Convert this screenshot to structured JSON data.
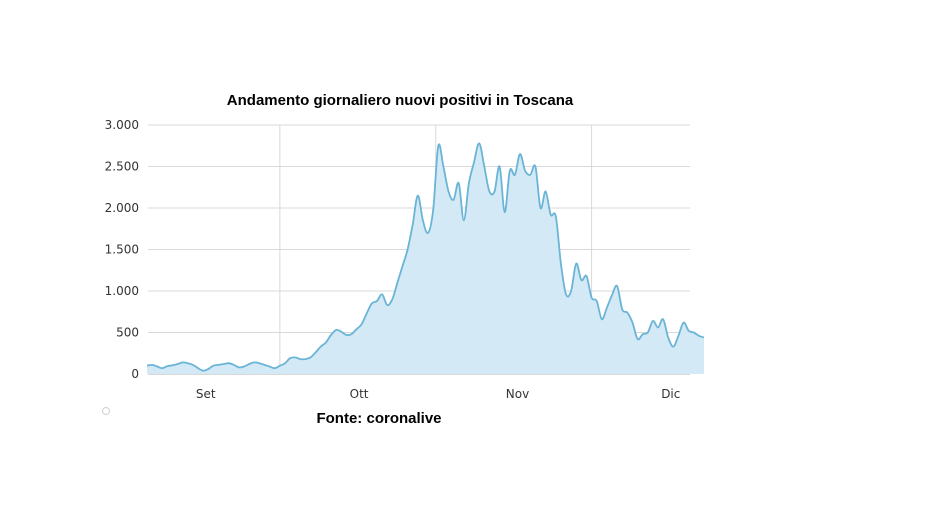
{
  "chart_data": {
    "type": "area",
    "title": "Andamento giornaliero nuovi positivi in Toscana",
    "source": "Fonte: coronalive",
    "xlabel": "",
    "ylabel": "",
    "ylim": [
      0,
      3000
    ],
    "yticks": [
      0,
      500,
      1000,
      1500,
      2000,
      2500,
      3000
    ],
    "ytick_labels": [
      "0",
      "500",
      "1.000",
      "1.500",
      "2.000",
      "2.500",
      "3.000"
    ],
    "xticks": [
      {
        "label": "Set",
        "day": 0
      },
      {
        "label": "Ott",
        "day": 30
      },
      {
        "label": "Nov",
        "day": 61
      },
      {
        "label": "Dic",
        "day": 91
      }
    ],
    "grid": true,
    "colors": {
      "line": "#6ab4d6",
      "fill": "#d3e9f5",
      "grid": "#d9d9d9"
    },
    "series": [
      {
        "values": [
          [
            -11,
            100
          ],
          [
            -10,
            110
          ],
          [
            -9,
            90
          ],
          [
            -8,
            70
          ],
          [
            -7,
            95
          ],
          [
            -6,
            105
          ],
          [
            -5,
            120
          ],
          [
            -4,
            140
          ],
          [
            -3,
            130
          ],
          [
            -2,
            110
          ],
          [
            -1,
            70
          ],
          [
            0,
            40
          ],
          [
            1,
            60
          ],
          [
            2,
            100
          ],
          [
            3,
            110
          ],
          [
            4,
            120
          ],
          [
            5,
            130
          ],
          [
            6,
            110
          ],
          [
            7,
            80
          ],
          [
            8,
            90
          ],
          [
            9,
            120
          ],
          [
            10,
            140
          ],
          [
            11,
            130
          ],
          [
            12,
            110
          ],
          [
            13,
            90
          ],
          [
            14,
            70
          ],
          [
            15,
            100
          ],
          [
            16,
            130
          ],
          [
            17,
            190
          ],
          [
            18,
            200
          ],
          [
            19,
            180
          ],
          [
            20,
            180
          ],
          [
            21,
            200
          ],
          [
            22,
            260
          ],
          [
            23,
            330
          ],
          [
            24,
            380
          ],
          [
            25,
            470
          ],
          [
            26,
            530
          ],
          [
            27,
            510
          ],
          [
            28,
            470
          ],
          [
            29,
            480
          ],
          [
            30,
            540
          ],
          [
            31,
            600
          ],
          [
            32,
            730
          ],
          [
            33,
            850
          ],
          [
            34,
            880
          ],
          [
            35,
            960
          ],
          [
            36,
            830
          ],
          [
            37,
            900
          ],
          [
            38,
            1100
          ],
          [
            39,
            1300
          ],
          [
            40,
            1500
          ],
          [
            41,
            1800
          ],
          [
            42,
            2150
          ],
          [
            43,
            1850
          ],
          [
            44,
            1700
          ],
          [
            45,
            1980
          ],
          [
            46,
            2750
          ],
          [
            47,
            2500
          ],
          [
            48,
            2200
          ],
          [
            49,
            2100
          ],
          [
            50,
            2300
          ],
          [
            51,
            1850
          ],
          [
            52,
            2300
          ],
          [
            53,
            2550
          ],
          [
            54,
            2780
          ],
          [
            55,
            2500
          ],
          [
            56,
            2200
          ],
          [
            57,
            2200
          ],
          [
            58,
            2500
          ],
          [
            59,
            1950
          ],
          [
            60,
            2450
          ],
          [
            61,
            2400
          ],
          [
            62,
            2650
          ],
          [
            63,
            2450
          ],
          [
            64,
            2400
          ],
          [
            65,
            2500
          ],
          [
            66,
            2000
          ],
          [
            67,
            2200
          ],
          [
            68,
            1920
          ],
          [
            69,
            1900
          ],
          [
            70,
            1330
          ],
          [
            71,
            960
          ],
          [
            72,
            1000
          ],
          [
            73,
            1330
          ],
          [
            74,
            1130
          ],
          [
            75,
            1180
          ],
          [
            76,
            920
          ],
          [
            77,
            880
          ],
          [
            78,
            660
          ],
          [
            79,
            800
          ],
          [
            80,
            950
          ],
          [
            81,
            1060
          ],
          [
            82,
            780
          ],
          [
            83,
            740
          ],
          [
            84,
            620
          ],
          [
            85,
            420
          ],
          [
            86,
            480
          ],
          [
            87,
            500
          ],
          [
            88,
            640
          ],
          [
            89,
            560
          ],
          [
            90,
            660
          ],
          [
            91,
            440
          ],
          [
            92,
            330
          ],
          [
            93,
            460
          ],
          [
            94,
            620
          ],
          [
            95,
            520
          ],
          [
            96,
            500
          ],
          [
            97,
            460
          ],
          [
            98,
            440
          ]
        ]
      }
    ]
  }
}
